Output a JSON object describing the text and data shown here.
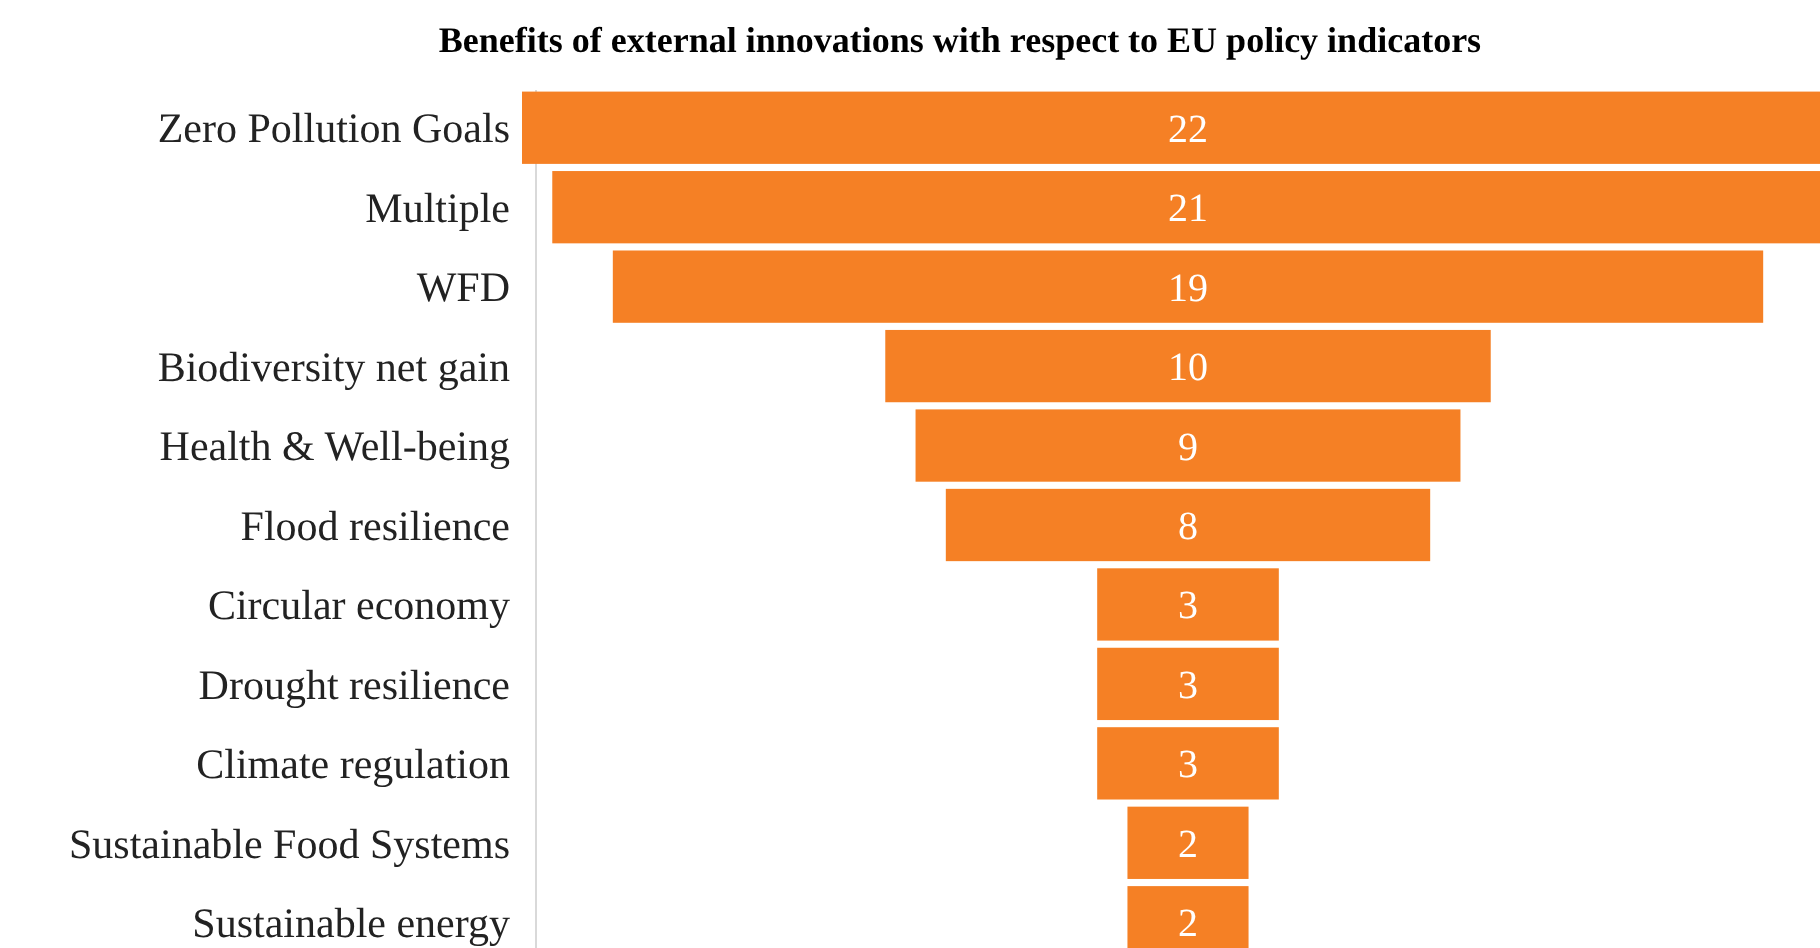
{
  "chart_data": {
    "type": "other",
    "title": "Benefits of external innovations with respect to EU policy indicators",
    "categories": [
      "Zero Pollution Goals",
      "Multiple",
      "WFD",
      "Biodiversity net gain",
      "Health & Well-being",
      "Flood resilience",
      "Circular economy",
      "Drought resilience",
      "Climate regulation",
      "Sustainable Food Systems",
      "Sustainable energy"
    ],
    "values": [
      22,
      21,
      19,
      10,
      9,
      8,
      3,
      3,
      3,
      2,
      2
    ],
    "color": "#f58025",
    "data_labels": true
  }
}
